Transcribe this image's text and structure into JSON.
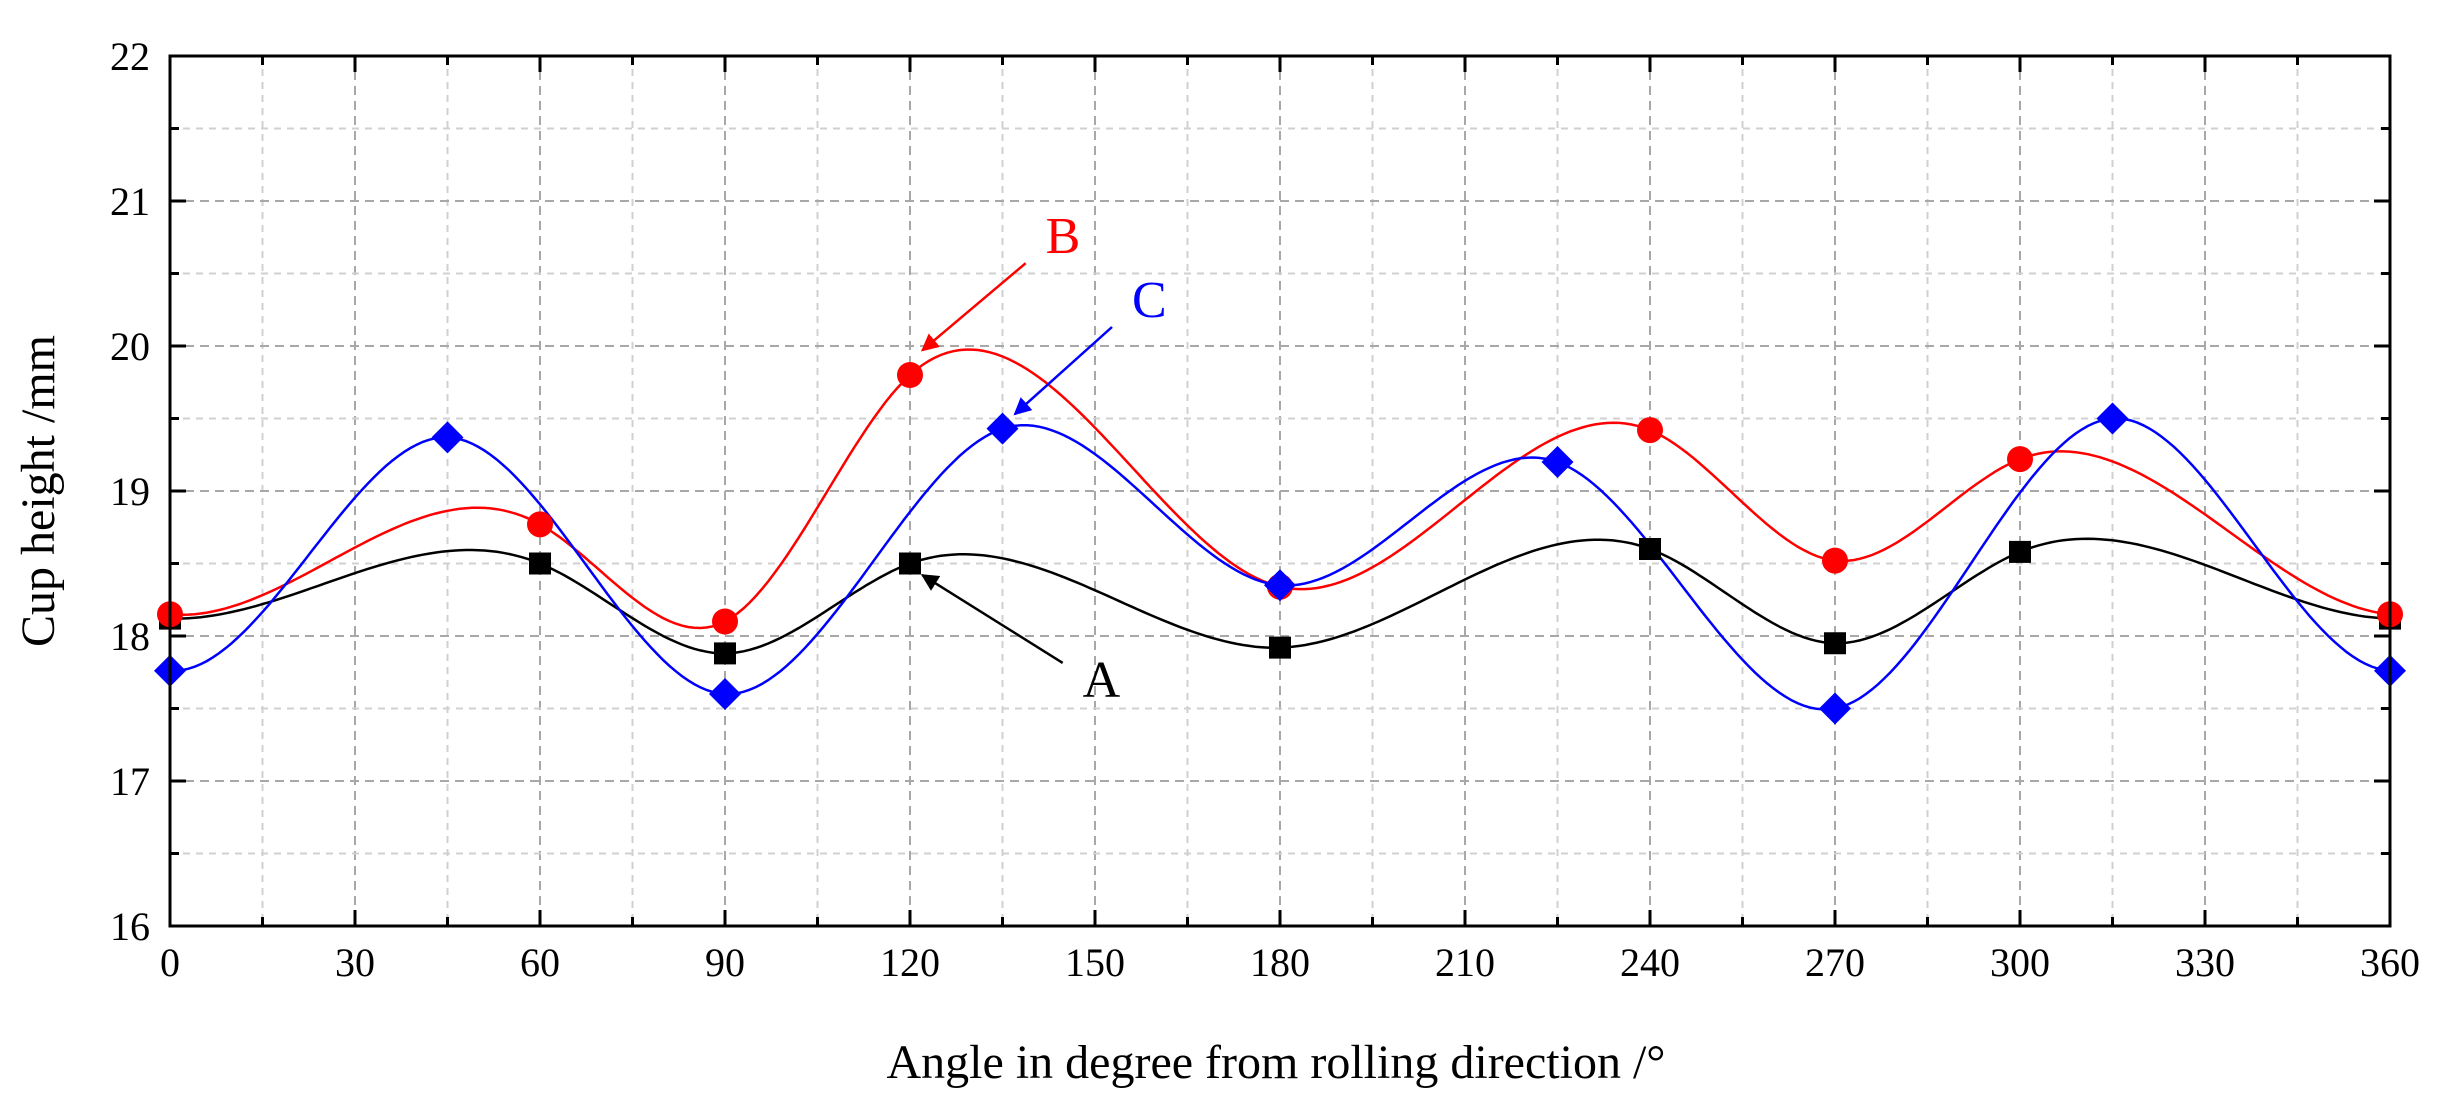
{
  "chart_data": {
    "type": "line",
    "title": "",
    "xlabel": "Angle in degree from rolling direction /°",
    "ylabel": "Cup height /mm",
    "xlim": [
      0,
      360
    ],
    "ylim": [
      16,
      22
    ],
    "x_ticks": [
      0,
      30,
      60,
      90,
      120,
      150,
      180,
      210,
      240,
      270,
      300,
      330,
      360
    ],
    "y_ticks": [
      16,
      17,
      18,
      19,
      20,
      21,
      22
    ],
    "x_tick_labels": [
      "0",
      "30",
      "60",
      "90",
      "120",
      "150",
      "180",
      "210",
      "240",
      "270",
      "300",
      "330",
      "360"
    ],
    "y_tick_labels": [
      "16",
      "17",
      "18",
      "19",
      "20",
      "21",
      "22"
    ],
    "grid": true,
    "series": [
      {
        "name": "A",
        "color": "#000000",
        "marker": "square",
        "x": [
          0,
          60,
          90,
          120,
          180,
          240,
          270,
          300,
          360
        ],
        "values": [
          18.12,
          18.5,
          17.88,
          18.5,
          17.92,
          18.6,
          17.95,
          18.58,
          18.12
        ],
        "label_ref": "A"
      },
      {
        "name": "B",
        "color": "#ff0000",
        "marker": "circle",
        "x": [
          0,
          60,
          90,
          120,
          180,
          240,
          270,
          300,
          360
        ],
        "values": [
          18.15,
          18.77,
          18.1,
          19.8,
          18.34,
          19.42,
          18.52,
          19.22,
          18.15
        ],
        "label_ref": "B"
      },
      {
        "name": "C",
        "color": "#0000ff",
        "marker": "diamond",
        "x": [
          0,
          45,
          90,
          135,
          180,
          225,
          270,
          315,
          360
        ],
        "values": [
          17.76,
          19.37,
          17.6,
          19.43,
          18.35,
          19.2,
          17.5,
          19.5,
          17.76
        ],
        "label_ref": "C"
      }
    ],
    "annotations": [
      {
        "text": "A",
        "color": "#000000",
        "text_x": 148,
        "text_y": 17.58,
        "arrow_to_x": 122,
        "arrow_to_y": 18.42
      },
      {
        "text": "B",
        "color": "#ff0000",
        "text_x": 142,
        "text_y": 20.64,
        "arrow_to_x": 122,
        "arrow_to_y": 19.97
      },
      {
        "text": "C",
        "color": "#0000ff",
        "text_x": 156,
        "text_y": 20.2,
        "arrow_to_x": 137,
        "arrow_to_y": 19.53
      }
    ]
  }
}
